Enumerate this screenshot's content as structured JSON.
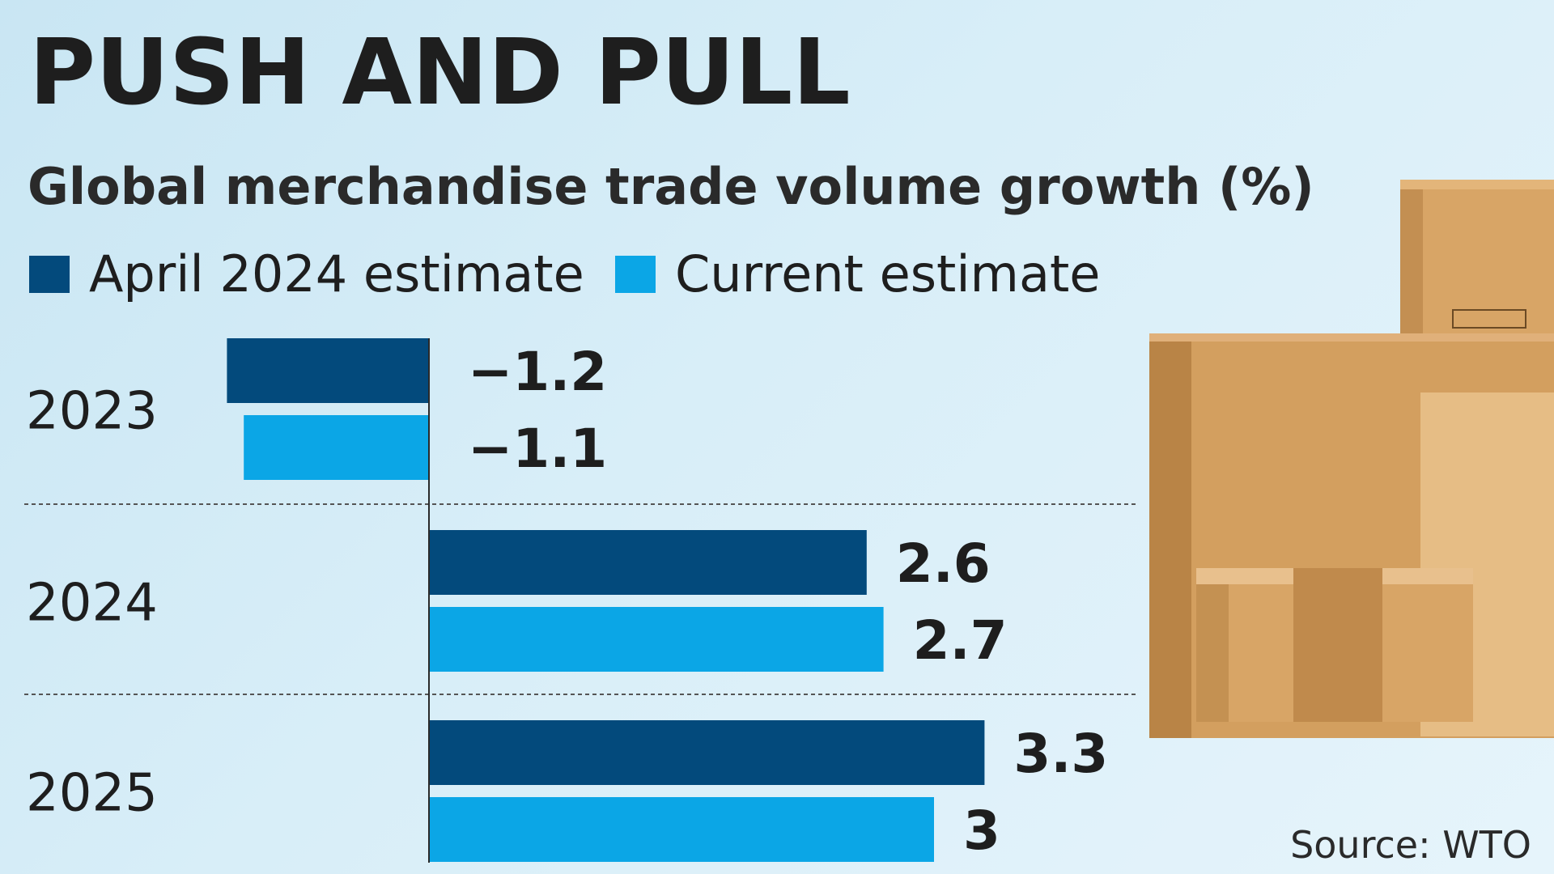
{
  "chart_data": {
    "type": "bar",
    "orientation": "horizontal",
    "title": "PUSH AND PULL",
    "subtitle": "Global merchandise trade volume growth (%)",
    "categories": [
      "2023",
      "2024",
      "2025"
    ],
    "series": [
      {
        "name": "April 2024 estimate",
        "values": [
          -1.2,
          2.6,
          3.3
        ],
        "labels": [
          "−1.2",
          "2.6",
          "3.3"
        ],
        "color": "#034a7c"
      },
      {
        "name": "Current estimate",
        "values": [
          -1.1,
          2.7,
          3
        ],
        "labels": [
          "−1.1",
          "2.7",
          "3"
        ],
        "color": "#0ba6e6"
      }
    ],
    "xlim": [
      -1.2,
      3.3
    ],
    "grid": false,
    "legend": "top-left",
    "source": "Source: WTO"
  },
  "colors": {
    "text": "#1e1e1e",
    "divider": "#555555",
    "box": "#d8a566",
    "box_dark": "#b98446",
    "box_light": "#e6bd85"
  },
  "decor": {
    "image": "cardboard-boxes"
  }
}
